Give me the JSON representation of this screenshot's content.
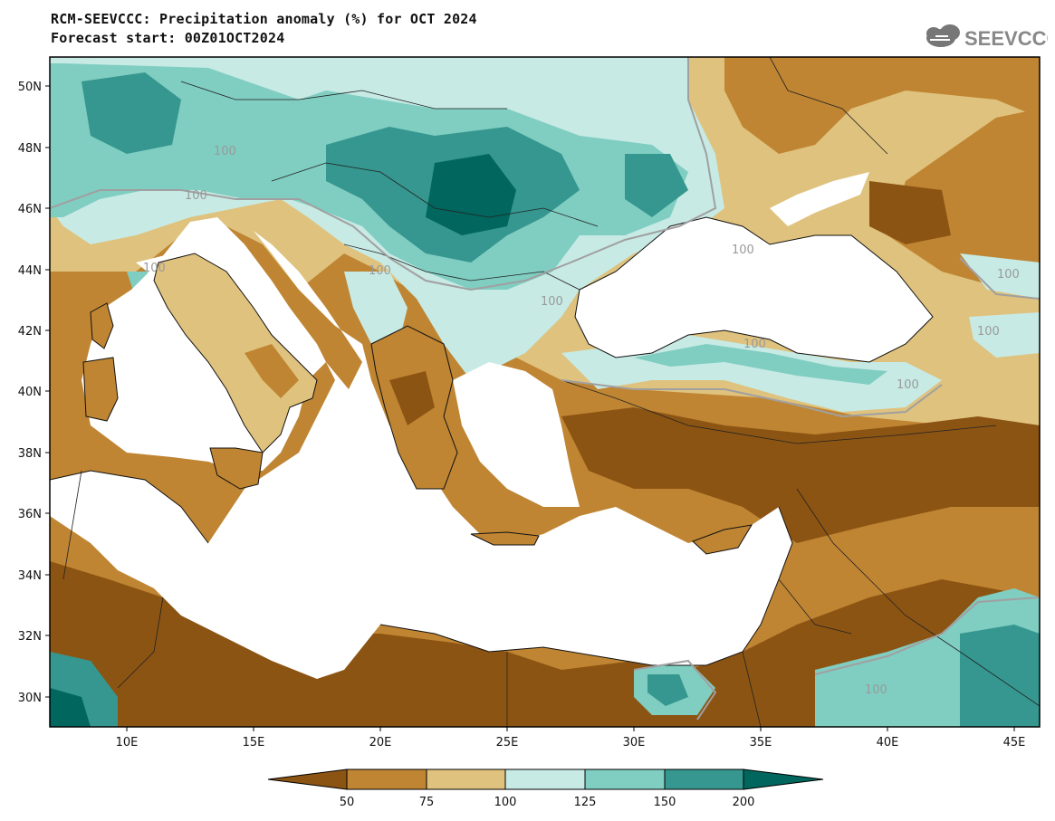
{
  "header": {
    "title": "RCM-SEEVCCC: Precipitation anomaly (%) for OCT 2024",
    "subtitle": "Forecast start: 00Z01OCT2024",
    "logo_text": "SEEVCCC"
  },
  "map": {
    "lat_labels": [
      "50N",
      "48N",
      "46N",
      "44N",
      "42N",
      "40N",
      "38N",
      "36N",
      "34N",
      "32N",
      "30N"
    ],
    "lon_labels": [
      "10E",
      "15E",
      "20E",
      "25E",
      "30E",
      "35E",
      "40E",
      "45E"
    ],
    "contour_labels": [
      "100",
      "100",
      "100",
      "100",
      "100",
      "100",
      "100",
      "100",
      "100",
      "100",
      "100"
    ]
  },
  "legend": {
    "ticks": [
      "50",
      "75",
      "100",
      "125",
      "150",
      "200"
    ],
    "colors": [
      "#8c5413",
      "#bf8533",
      "#dfc27d",
      "#c7eae5",
      "#80cdc1",
      "#35978f",
      "#01665e"
    ]
  }
}
